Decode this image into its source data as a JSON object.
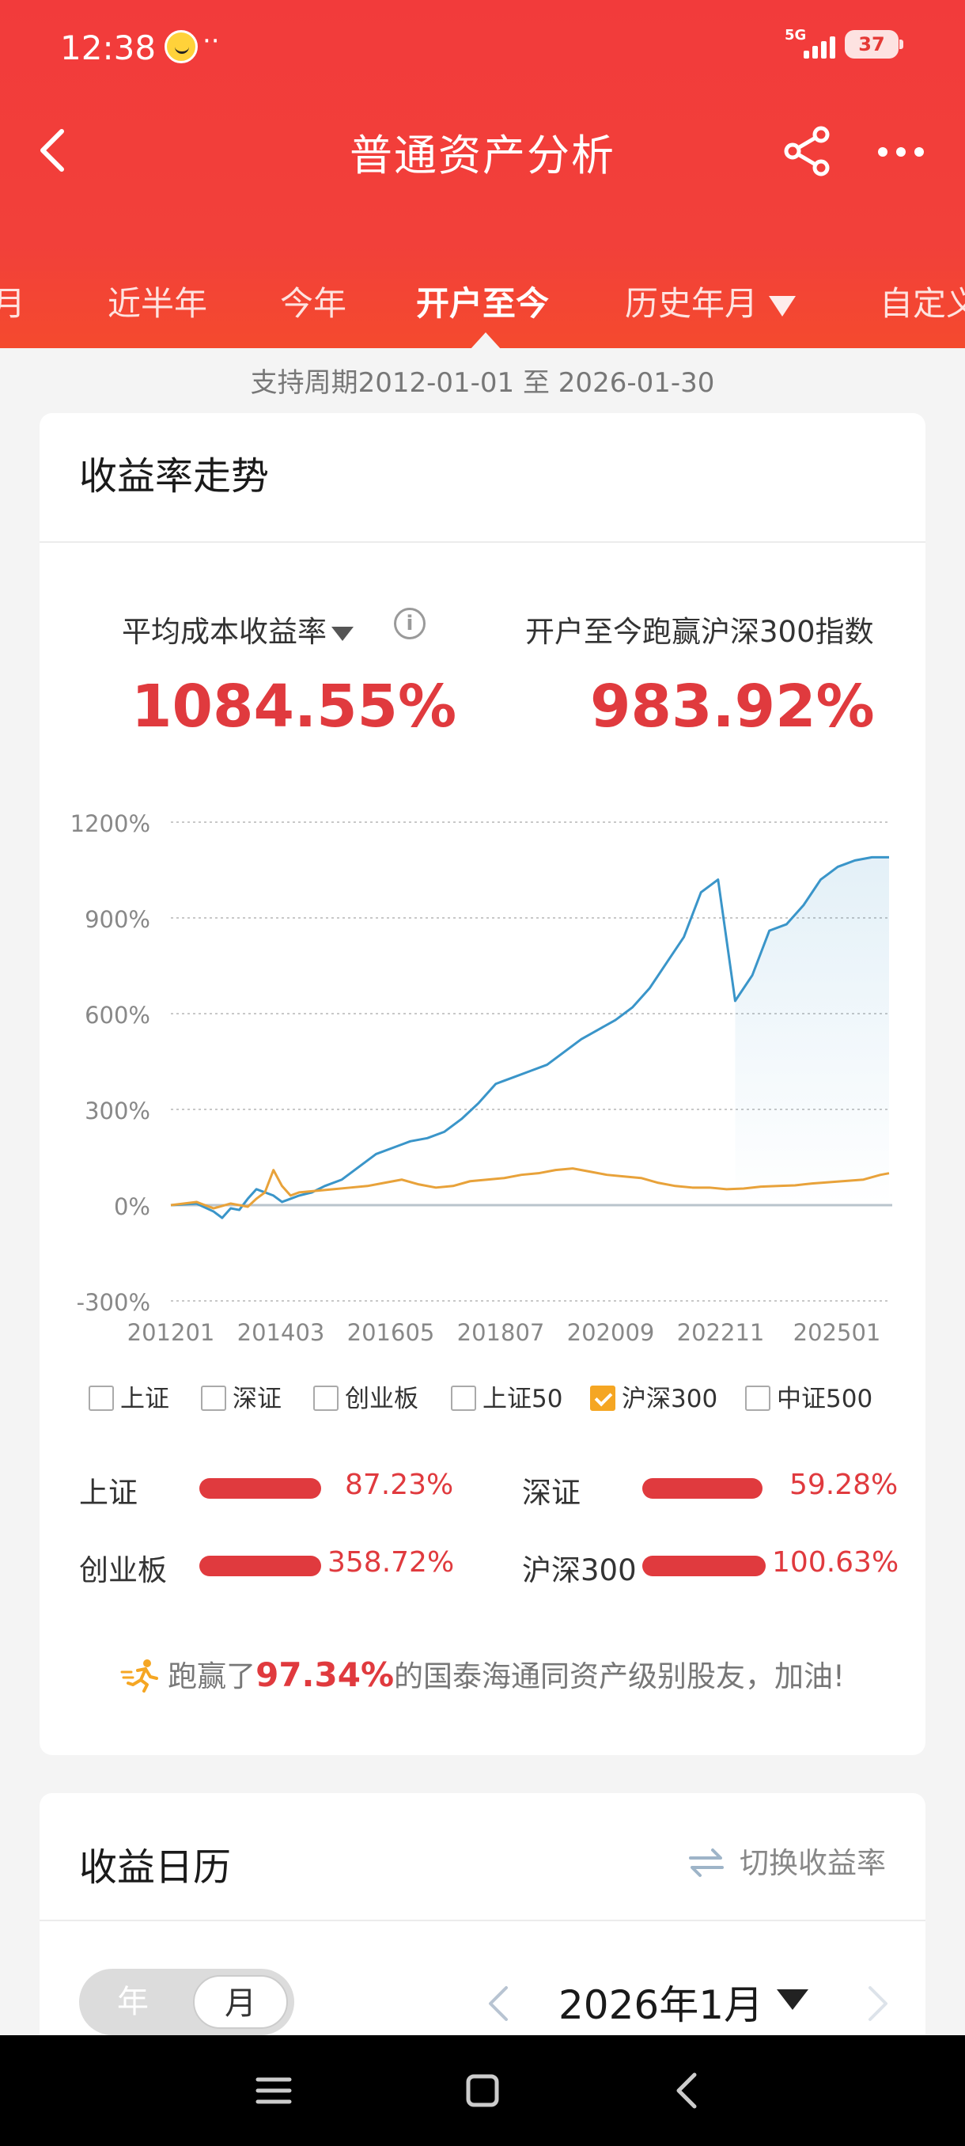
{
  "status": {
    "time": "12:38",
    "dots": "··",
    "network": "5G",
    "battery": "37"
  },
  "navbar": {
    "title": "普通资产分析"
  },
  "tabs": [
    {
      "label": "三月",
      "active": false
    },
    {
      "label": "近半年",
      "active": false
    },
    {
      "label": "今年",
      "active": false
    },
    {
      "label": "开户至今",
      "active": true
    },
    {
      "label": "历史年月",
      "active": false
    },
    {
      "label": "自定义",
      "active": false
    }
  ],
  "period": "支持周期2012-01-01 至 2026-01-30",
  "trend": {
    "title": "收益率走势",
    "metric_left": {
      "label": "平均成本收益率",
      "value": "1084.55%"
    },
    "metric_right": {
      "label": "开户至今跑赢沪深300指数",
      "value": "983.92%"
    }
  },
  "chart_data": {
    "type": "line",
    "y_ticks": [
      "1200%",
      "900%",
      "600%",
      "300%",
      "0%",
      "-300%"
    ],
    "ylim": [
      -300,
      1200
    ],
    "x_ticks": [
      "201201",
      "201403",
      "201605",
      "201807",
      "202009",
      "202211",
      "202501"
    ],
    "x_range": [
      "2012-01",
      "2026-01"
    ],
    "series": [
      {
        "name": "",
        "color": "#3a95c9",
        "x": [
          0,
          6,
          10,
          12,
          14,
          16,
          18,
          20,
          24,
          26,
          28,
          30,
          33,
          36,
          40,
          44,
          48,
          52,
          56,
          60,
          64,
          68,
          72,
          76,
          80,
          84,
          88,
          92,
          96,
          100,
          104,
          108,
          112,
          116,
          120,
          124,
          128,
          132,
          136,
          140,
          144,
          148,
          150,
          152,
          154,
          156,
          158,
          160,
          162,
          164,
          166,
          168
        ],
        "values": [
          0,
          5,
          -20,
          -40,
          -10,
          -15,
          20,
          50,
          30,
          10,
          20,
          30,
          40,
          60,
          80,
          120,
          160,
          180,
          200,
          210,
          230,
          270,
          320,
          380,
          400,
          420,
          440,
          480,
          520,
          550,
          580,
          620,
          680,
          760,
          840,
          980,
          1020,
          640,
          720,
          860,
          880,
          940,
          980,
          1020,
          1040,
          1060,
          1070,
          1080,
          1085,
          1090,
          1090,
          1090
        ]
      },
      {
        "name": "沪深300",
        "color": "#e8a23a",
        "x": [
          0,
          6,
          10,
          14,
          18,
          20,
          22,
          24,
          26,
          28,
          30,
          34,
          38,
          42,
          46,
          50,
          54,
          58,
          62,
          66,
          70,
          74,
          78,
          82,
          86,
          90,
          94,
          98,
          102,
          106,
          110,
          114,
          118,
          122,
          126,
          130,
          134,
          138,
          142,
          146,
          150,
          154,
          158,
          162,
          166,
          168
        ],
        "values": [
          0,
          10,
          -10,
          5,
          -5,
          20,
          40,
          110,
          60,
          30,
          40,
          45,
          50,
          55,
          60,
          70,
          80,
          65,
          55,
          60,
          75,
          80,
          85,
          95,
          100,
          110,
          115,
          105,
          95,
          90,
          85,
          70,
          60,
          55,
          55,
          50,
          52,
          58,
          60,
          62,
          68,
          72,
          76,
          80,
          95,
          100
        ]
      }
    ]
  },
  "legend": [
    {
      "label": "上证",
      "checked": false
    },
    {
      "label": "深证",
      "checked": false
    },
    {
      "label": "创业板",
      "checked": false
    },
    {
      "label": "上证50",
      "checked": false
    },
    {
      "label": "沪深300",
      "checked": true
    },
    {
      "label": "中证500",
      "checked": false
    }
  ],
  "comparisons": [
    {
      "label": "上证",
      "value": "87.23%",
      "pct": 87.23
    },
    {
      "label": "深证",
      "value": "59.28%",
      "pct": 59.28
    },
    {
      "label": "创业板",
      "value": "358.72%",
      "pct": 358.72
    },
    {
      "label": "沪深300",
      "value": "100.63%",
      "pct": 100.63
    }
  ],
  "beat": {
    "prefix": "跑赢了",
    "pct": "97.34%",
    "suffix": "的国泰海通同资产级别股友，加油!"
  },
  "calendar": {
    "title": "收益日历",
    "switch_label": "切换收益率",
    "toggle_year": "年",
    "toggle_month": "月",
    "current_month": "2026年1月"
  },
  "colors": {
    "header": "#f23b3b",
    "accent": "#e03a3e",
    "benchmark": "#e8a23a",
    "portfolio": "#3a95c9"
  }
}
